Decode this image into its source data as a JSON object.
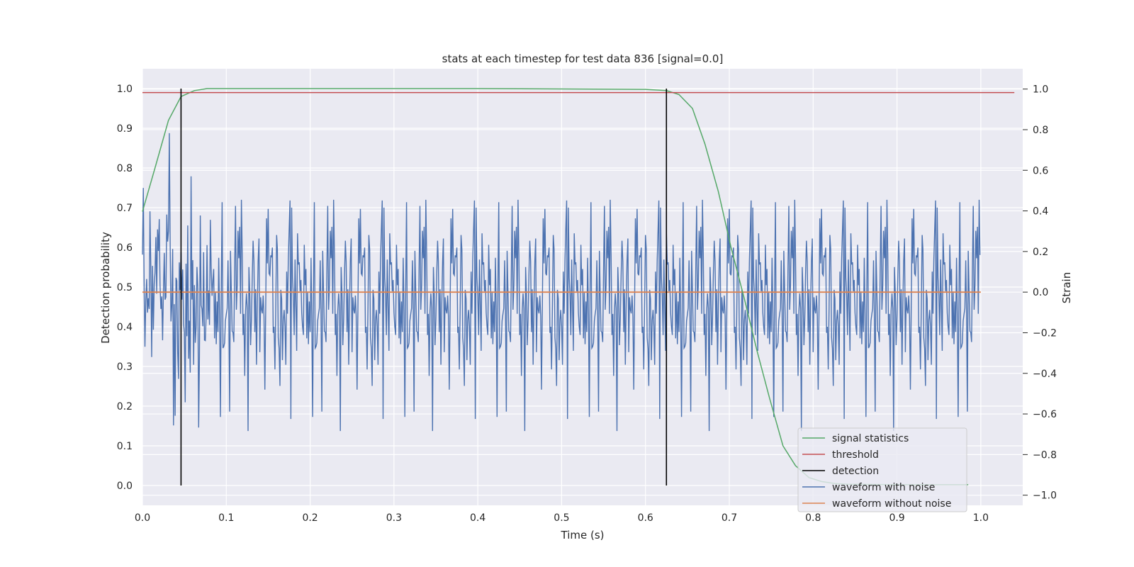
{
  "chart_data": {
    "type": "line",
    "title": "stats at each timestep for test data 836 [signal=0.0]",
    "xlabel": "Time (s)",
    "ylabel": "Detection probability",
    "ylabel_right": "Strain",
    "xlim": [
      0.0,
      1.05
    ],
    "ylim": [
      -0.05,
      1.05
    ],
    "ylim_right": [
      -1.05,
      1.1
    ],
    "xticks": [
      "0.0",
      "0.1",
      "0.2",
      "0.3",
      "0.4",
      "0.5",
      "0.6",
      "0.7",
      "0.8",
      "0.9",
      "1.0"
    ],
    "yticks": [
      "0.0",
      "0.1",
      "0.2",
      "0.3",
      "0.4",
      "0.5",
      "0.6",
      "0.7",
      "0.8",
      "0.9",
      "1.0"
    ],
    "yticks_right": [
      "−1.0",
      "−0.8",
      "−0.6",
      "−0.4",
      "−0.2",
      "0.0",
      "0.2",
      "0.4",
      "0.6",
      "0.8",
      "1.0"
    ],
    "grid": true,
    "legend_position": "lower right",
    "colors": {
      "signal_statistics": "#55a868",
      "threshold": "#c44e52",
      "detection": "#000000",
      "waveform_with_noise": "#4c72b0",
      "waveform_without_noise": "#dd8452",
      "axes_background": "#eaeaf2",
      "grid": "#ffffff"
    },
    "series": [
      {
        "name": "signal statistics",
        "axis": "left",
        "x": [
          0.0,
          0.015,
          0.031,
          0.046,
          0.062,
          0.077,
          0.092,
          0.2,
          0.4,
          0.6,
          0.625,
          0.64,
          0.656,
          0.671,
          0.687,
          0.702,
          0.718,
          0.733,
          0.748,
          0.764,
          0.779,
          0.795,
          0.81,
          0.826,
          0.841,
          0.9,
          0.95,
          0.985
        ],
        "y": [
          0.69,
          0.8,
          0.92,
          0.98,
          0.995,
          1.0,
          1.0,
          1.0,
          1.0,
          0.998,
          0.995,
          0.985,
          0.95,
          0.86,
          0.74,
          0.6,
          0.47,
          0.34,
          0.22,
          0.1,
          0.05,
          0.02,
          0.01,
          0.005,
          0.003,
          0.002,
          0.002,
          0.002
        ]
      },
      {
        "name": "threshold",
        "axis": "left",
        "value": 0.99
      },
      {
        "name": "detection",
        "axis": "left",
        "x_values": [
          0.046,
          0.625
        ]
      },
      {
        "name": "waveform with noise",
        "axis": "right",
        "note": "noisy strain time series, 1 second sampled",
        "seed": 836,
        "n": 1000,
        "std": 0.27
      },
      {
        "name": "waveform without noise",
        "axis": "right",
        "value": 0.0
      }
    ],
    "legend": [
      "signal statistics",
      "threshold",
      "detection",
      "waveform with noise",
      "waveform without noise"
    ]
  }
}
